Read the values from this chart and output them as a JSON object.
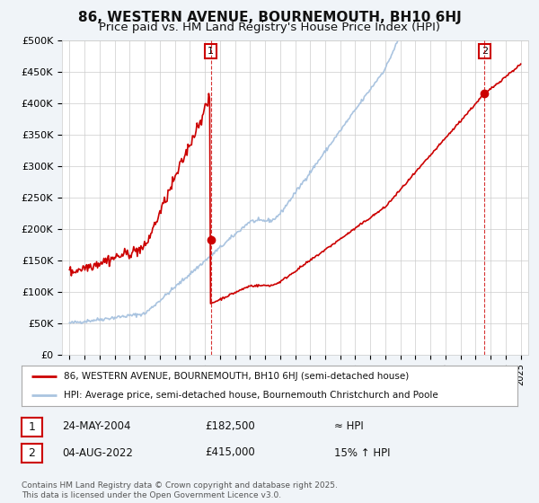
{
  "title": "86, WESTERN AVENUE, BOURNEMOUTH, BH10 6HJ",
  "subtitle": "Price paid vs. HM Land Registry's House Price Index (HPI)",
  "ylim": [
    0,
    500000
  ],
  "yticks": [
    0,
    50000,
    100000,
    150000,
    200000,
    250000,
    300000,
    350000,
    400000,
    450000,
    500000
  ],
  "ytick_labels": [
    "£0",
    "£50K",
    "£100K",
    "£150K",
    "£200K",
    "£250K",
    "£300K",
    "£350K",
    "£400K",
    "£450K",
    "£500K"
  ],
  "hpi_color": "#aac4e0",
  "price_color": "#cc0000",
  "background_color": "#f0f4f8",
  "plot_bg_color": "#ffffff",
  "grid_color": "#cccccc",
  "sale1_year": 2004.39,
  "sale1_price": 182500,
  "sale2_year": 2022.59,
  "sale2_price": 415000,
  "vline_color": "#cc0000",
  "marker_color": "#cc0000",
  "legend_line1": "86, WESTERN AVENUE, BOURNEMOUTH, BH10 6HJ (semi-detached house)",
  "legend_line2": "HPI: Average price, semi-detached house, Bournemouth Christchurch and Poole",
  "table_row1_date": "24-MAY-2004",
  "table_row1_price": "£182,500",
  "table_row1_hpi": "≈ HPI",
  "table_row2_date": "04-AUG-2022",
  "table_row2_price": "£415,000",
  "table_row2_hpi": "15% ↑ HPI",
  "footer": "Contains HM Land Registry data © Crown copyright and database right 2025.\nThis data is licensed under the Open Government Licence v3.0.",
  "title_fontsize": 11,
  "subtitle_fontsize": 9.5
}
